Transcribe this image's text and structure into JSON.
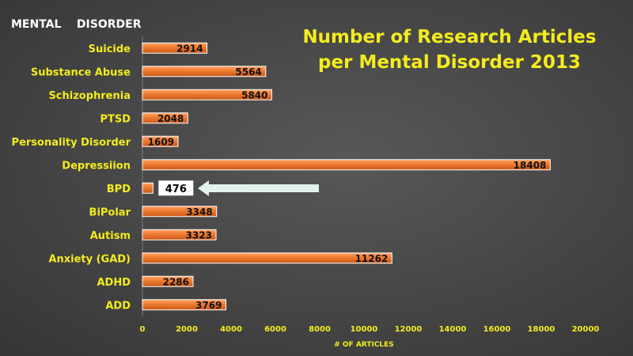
{
  "chart_data": {
    "type": "bar",
    "orientation": "horizontal",
    "title": "Number of Research Articles per Mental Disorder 2013",
    "title_lines": [
      "Number of Research Articles",
      "per Mental Disorder 2013"
    ],
    "ylabel": "MENTAL    DISORDER",
    "xlabel": "# OF ARTICLES",
    "categories": [
      "Suicide",
      "Substance Abuse",
      "Schizophrenia",
      "PTSD",
      "Personality Disorder",
      "Depressiion",
      "BPD",
      "BiPolar",
      "Autism",
      "Anxiety (GAD)",
      "ADHD",
      "ADD"
    ],
    "values": [
      2914,
      5564,
      5840,
      2048,
      1609,
      18408,
      476,
      3348,
      3323,
      11262,
      2286,
      3769
    ],
    "xlim": [
      0,
      20000
    ],
    "xticks": [
      0,
      2000,
      4000,
      6000,
      8000,
      10000,
      12000,
      14000,
      16000,
      18000,
      20000
    ],
    "grid": false,
    "legend": "none",
    "highlight": {
      "category": "BPD",
      "annotation": "arrow pointing to value"
    },
    "colors": {
      "bar": "#ee7b30",
      "label_text": "#f4ec1c",
      "arrow": "#e2f2ec",
      "highlight_box": "#ffffff"
    }
  }
}
